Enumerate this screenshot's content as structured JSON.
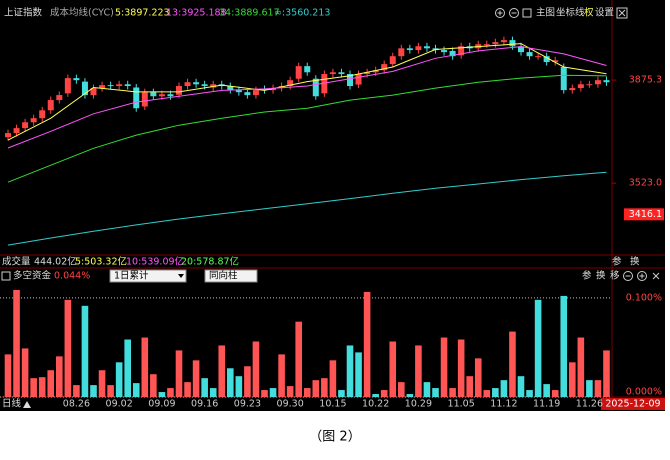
{
  "header": {
    "index_name": "上证指数",
    "indicator": "成本均线(CYC)",
    "toolbar": [
      "主图",
      "坐标线",
      "权",
      "设置"
    ]
  },
  "info_bar": {
    "label": "成交量",
    "value": "444.02亿",
    "ma": [
      {
        "text": "5:503.32亿",
        "color": "#ffff55"
      },
      {
        "text": "10:539.09亿",
        "color": "#ff55ff"
      },
      {
        "text": "20:578.87亿",
        "color": "#55ff55"
      }
    ],
    "tools": [
      "参",
      "换"
    ]
  },
  "lower_header": {
    "title": "多空资金",
    "value": "0.044%",
    "dropdown": "1日累计",
    "mode": "同向柱",
    "tools": [
      "参",
      "换",
      "移"
    ]
  },
  "x_axis": {
    "period": "日线",
    "cursor_date": "2025-12-09"
  },
  "caption": "（图 2）",
  "chart_data": [
    {
      "type": "candlestick",
      "categories": [
        null,
        null,
        null,
        null,
        null,
        null,
        null,
        null,
        "08.26",
        null,
        null,
        null,
        null,
        "09.02",
        null,
        null,
        null,
        null,
        "09.09",
        null,
        null,
        null,
        null,
        "09.16",
        null,
        null,
        null,
        null,
        "09.23",
        null,
        null,
        null,
        null,
        "09.30",
        null,
        null,
        null,
        null,
        "10.15",
        null,
        null,
        null,
        null,
        "10.22",
        null,
        null,
        null,
        null,
        "10.29",
        null,
        null,
        null,
        null,
        "11.05",
        null,
        null,
        null,
        null,
        "11.12",
        null,
        null,
        null,
        null,
        "11.19",
        null,
        null,
        null,
        null,
        "11.26",
        null,
        null
      ],
      "open": [
        3680,
        3694,
        3711,
        3731,
        3745,
        3772,
        3807,
        3830,
        3882,
        3870,
        3824,
        3848,
        3858,
        3855,
        3861,
        3850,
        3785,
        3834,
        3820,
        3827,
        3825,
        3855,
        3868,
        3861,
        3850,
        3861,
        3855,
        3841,
        3834,
        3824,
        3845,
        3841,
        3848,
        3855,
        3880,
        3923,
        3880,
        3830,
        3896,
        3902,
        3896,
        3860,
        3896,
        3902,
        3909,
        3930,
        3957,
        3984,
        3978,
        3991,
        3984,
        3978,
        3975,
        3960,
        3991,
        3984,
        3998,
        3998,
        4005,
        4012,
        3991,
        3971,
        3957,
        3957,
        3937,
        3920,
        3841,
        3848,
        3861,
        3861,
        3875
      ],
      "high": [
        3706,
        3723,
        3743,
        3757,
        3784,
        3819,
        3836,
        3894,
        3894,
        3882,
        3860,
        3870,
        3870,
        3873,
        3873,
        3862,
        3846,
        3846,
        3839,
        3839,
        3867,
        3880,
        3880,
        3873,
        3873,
        3873,
        3867,
        3853,
        3846,
        3853,
        3857,
        3860,
        3867,
        3887,
        3935,
        3935,
        3892,
        3908,
        3914,
        3914,
        3908,
        3908,
        3914,
        3921,
        3942,
        3969,
        3996,
        3996,
        4003,
        4003,
        3996,
        3990,
        3987,
        4003,
        4003,
        4010,
        4010,
        4017,
        4024,
        4024,
        4003,
        3983,
        3969,
        3969,
        3955,
        3932,
        3860,
        3873,
        3873,
        3887,
        3887
      ],
      "low": [
        3668,
        3682,
        3699,
        3719,
        3733,
        3760,
        3795,
        3818,
        3863,
        3812,
        3812,
        3836,
        3843,
        3843,
        3843,
        3767,
        3773,
        3808,
        3808,
        3808,
        3813,
        3843,
        3849,
        3843,
        3838,
        3843,
        3829,
        3822,
        3812,
        3812,
        3829,
        3829,
        3836,
        3843,
        3868,
        3890,
        3808,
        3818,
        3884,
        3884,
        3843,
        3848,
        3884,
        3890,
        3897,
        3918,
        3945,
        3966,
        3966,
        3972,
        3966,
        3959,
        3945,
        3948,
        3972,
        3972,
        3986,
        3986,
        3993,
        3979,
        3959,
        3945,
        3945,
        3925,
        3925,
        3829,
        3829,
        3836,
        3849,
        3849,
        3856
      ],
      "close": [
        3694,
        3711,
        3731,
        3745,
        3772,
        3807,
        3824,
        3882,
        3875,
        3824,
        3848,
        3858,
        3855,
        3861,
        3855,
        3779,
        3834,
        3820,
        3827,
        3820,
        3855,
        3868,
        3861,
        3855,
        3861,
        3855,
        3841,
        3834,
        3824,
        3841,
        3841,
        3848,
        3855,
        3875,
        3923,
        3902,
        3820,
        3896,
        3902,
        3896,
        3855,
        3896,
        3902,
        3909,
        3930,
        3957,
        3984,
        3978,
        3991,
        3984,
        3978,
        3971,
        3957,
        3991,
        3984,
        3998,
        3998,
        4005,
        4012,
        3991,
        3971,
        3957,
        3957,
        3937,
        3943,
        3841,
        3848,
        3861,
        3861,
        3875,
        3868
      ],
      "up_color": "#ff4444",
      "down_color": "#44dddd",
      "series": [
        {
          "name": "5:3897.223",
          "color": "#ffff55",
          "x": [
            0,
            5,
            10,
            15,
            20,
            25,
            30,
            35,
            40,
            45,
            50,
            55,
            60,
            65,
            70
          ],
          "values": [
            3670,
            3745,
            3850,
            3835,
            3835,
            3858,
            3840,
            3870,
            3890,
            3920,
            3980,
            3990,
            4000,
            3920,
            3897.223
          ]
        },
        {
          "name": "13:3925.188",
          "color": "#ff55ff",
          "x": [
            0,
            5,
            10,
            15,
            20,
            25,
            30,
            35,
            40,
            45,
            50,
            55,
            60,
            65,
            70
          ],
          "values": [
            3643,
            3700,
            3760,
            3800,
            3820,
            3840,
            3845,
            3855,
            3880,
            3905,
            3950,
            3975,
            3990,
            3965,
            3925.188
          ]
        },
        {
          "name": "34:3889.617",
          "color": "#33dd33",
          "x": [
            0,
            5,
            10,
            15,
            20,
            25,
            30,
            35,
            40,
            45,
            50,
            55,
            60,
            65,
            70
          ],
          "values": [
            3526,
            3584,
            3642,
            3687,
            3721,
            3745,
            3766,
            3779,
            3807,
            3824,
            3848,
            3868,
            3882,
            3892,
            3889.617
          ]
        },
        {
          "name": "∞:3560.213",
          "color": "#33cccc",
          "x": [
            0,
            5,
            10,
            15,
            20,
            25,
            30,
            35,
            40,
            45,
            50,
            55,
            60,
            65,
            70
          ],
          "values": [
            3311,
            3335,
            3358,
            3380,
            3400,
            3418,
            3435,
            3452,
            3470,
            3488,
            3505,
            3520,
            3535,
            3548,
            3560.213
          ]
        }
      ],
      "ylim": [
        3277,
        4074
      ],
      "yticks": [
        3875.3,
        {
          "value": 3523,
          "label": "3523.0"
        }
      ],
      "marker_value": 3416.1,
      "marker_color": "#ff2222",
      "grid": false
    },
    {
      "type": "bar",
      "values": [
        0.043,
        0.108,
        0.049,
        0.019,
        0.02,
        0.027,
        0.041,
        0.098,
        0.012,
        0.092,
        0.012,
        0.027,
        0.012,
        0.035,
        0.058,
        0.014,
        0.06,
        0.023,
        0.005,
        0.009,
        0.047,
        0.015,
        0.037,
        0.019,
        0.009,
        0.052,
        0.029,
        0.021,
        0.031,
        0.056,
        0.007,
        0.009,
        0.043,
        0.011,
        0.076,
        0.009,
        0.017,
        0.019,
        0.037,
        0.007,
        0.052,
        0.045,
        0.106,
        0.003,
        0.007,
        0.056,
        0.015,
        0.003,
        0.052,
        0.015,
        0.009,
        0.06,
        0.009,
        0.058,
        0.021,
        0.039,
        0.007,
        0.009,
        0.017,
        0.066,
        0.021,
        0.007,
        0.098,
        0.013,
        0.007,
        0.102,
        0.035,
        0.06,
        0.017,
        0.017,
        0.047
      ],
      "colors": [
        "#ff5555",
        "#ff5555",
        "#ff5555",
        "#ff5555",
        "#ff5555",
        "#ff5555",
        "#ff5555",
        "#ff5555",
        "#ff5555",
        "#44dddd",
        "#44dddd",
        "#ff5555",
        "#ff5555",
        "#44dddd",
        "#44dddd",
        "#44dddd",
        "#ff5555",
        "#ff5555",
        "#44dddd",
        "#ff5555",
        "#ff5555",
        "#ff5555",
        "#ff5555",
        "#44dddd",
        "#44dddd",
        "#ff5555",
        "#44dddd",
        "#44dddd",
        "#ff5555",
        "#ff5555",
        "#ff5555",
        "#44dddd",
        "#ff5555",
        "#ff5555",
        "#ff5555",
        "#ff5555",
        "#ff5555",
        "#ff5555",
        "#ff5555",
        "#44dddd",
        "#44dddd",
        "#44dddd",
        "#ff5555",
        "#44dddd",
        "#ff5555",
        "#ff5555",
        "#ff5555",
        "#44dddd",
        "#ff5555",
        "#44dddd",
        "#44dddd",
        "#ff5555",
        "#ff5555",
        "#ff5555",
        "#ff5555",
        "#ff5555",
        "#ff5555",
        "#44dddd",
        "#44dddd",
        "#ff5555",
        "#44dddd",
        "#44dddd",
        "#44dddd",
        "#44dddd",
        "#ff5555",
        "#44dddd",
        "#ff5555",
        "#ff5555",
        "#44dddd",
        "#ff5555",
        "#ff5555"
      ],
      "ylim": [
        0,
        0.113
      ],
      "yticks": [
        {
          "value": 0.1,
          "label": "0.100%"
        },
        {
          "value": 0,
          "label": "0.000%"
        }
      ],
      "grid": true
    }
  ]
}
